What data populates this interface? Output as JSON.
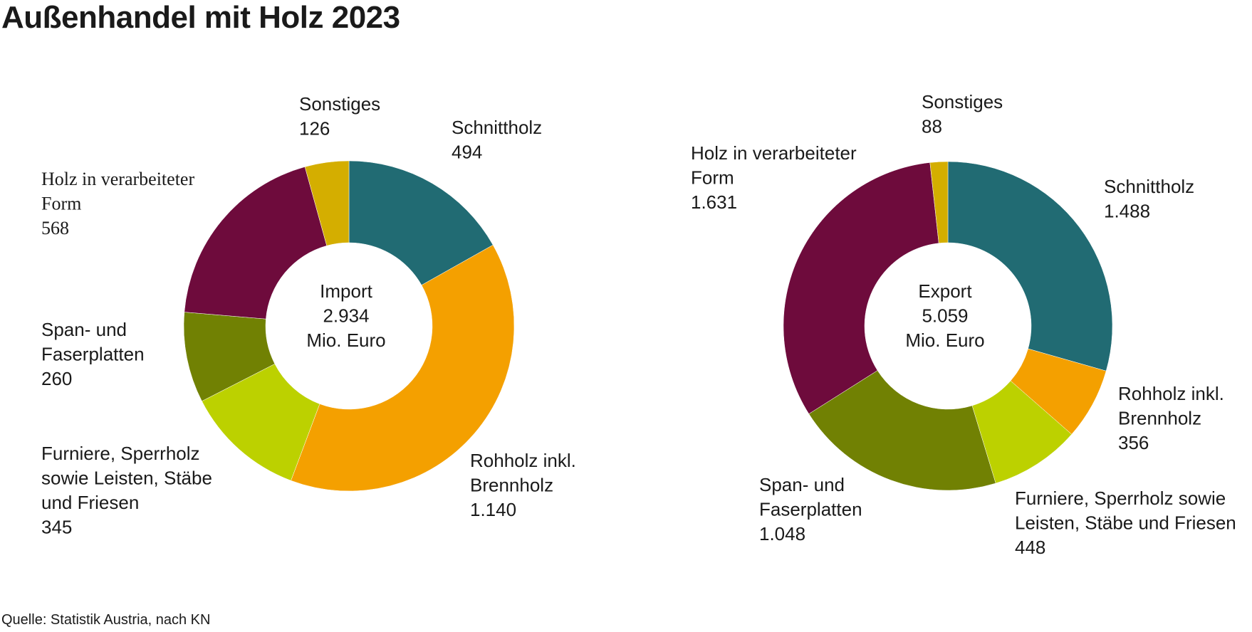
{
  "title": "Außenhandel mit Holz 2023",
  "source": "Quelle: Statistik Austria, nach KN",
  "colors": {
    "Schnittholz": "#216b73",
    "Rohholz inkl. Brennholz": "#f4a000",
    "Furniere": "#bcd100",
    "Span- und Faserplatten": "#718103",
    "Holz in verarbeiteter Form": "#6e0b3c",
    "Sonstiges": "#d4ae00"
  },
  "chart_data": [
    {
      "type": "pie",
      "center_lines": [
        "Import",
        "2.934",
        "Mio. Euro"
      ],
      "slices": [
        {
          "key": "Schnittholz",
          "label_lines": [
            "Schnittholz"
          ],
          "value_text": "494",
          "value": 494
        },
        {
          "key": "Rohholz inkl. Brennholz",
          "label_lines": [
            "Rohholz inkl.",
            "Brennholz"
          ],
          "value_text": "1.140",
          "value": 1140
        },
        {
          "key": "Furniere",
          "label_lines": [
            "Furniere, Sperrholz",
            "sowie Leisten, Stäbe",
            "und Friesen"
          ],
          "value_text": "345",
          "value": 345
        },
        {
          "key": "Span- und Faserplatten",
          "label_lines": [
            "Span- und",
            "Faserplatten"
          ],
          "value_text": "260",
          "value": 260
        },
        {
          "key": "Holz in verarbeiteter Form",
          "label_lines": [
            "Holz in verarbeiteter",
            "Form"
          ],
          "value_text": "568",
          "value": 568
        },
        {
          "key": "Sonstiges",
          "label_lines": [
            "Sonstiges"
          ],
          "value_text": "126",
          "value": 126
        }
      ]
    },
    {
      "type": "pie",
      "center_lines": [
        "Export",
        "5.059",
        "Mio. Euro"
      ],
      "slices": [
        {
          "key": "Schnittholz",
          "label_lines": [
            "Schnittholz"
          ],
          "value_text": "1.488",
          "value": 1488
        },
        {
          "key": "Rohholz inkl. Brennholz",
          "label_lines": [
            "Rohholz inkl.",
            "Brennholz"
          ],
          "value_text": "356",
          "value": 356
        },
        {
          "key": "Furniere",
          "label_lines": [
            "Furniere, Sperrholz sowie",
            "Leisten, Stäbe und Friesen"
          ],
          "value_text": "448",
          "value": 448
        },
        {
          "key": "Span- und Faserplatten",
          "label_lines": [
            "Span- und",
            "Faserplatten"
          ],
          "value_text": "1.048",
          "value": 1048
        },
        {
          "key": "Holz in verarbeiteter Form",
          "label_lines": [
            "Holz in verarbeiteter",
            "Form"
          ],
          "value_text": "1.631",
          "value": 1631
        },
        {
          "key": "Sonstiges",
          "label_lines": [
            "Sonstiges"
          ],
          "value_text": "88",
          "value": 88
        }
      ]
    }
  ]
}
